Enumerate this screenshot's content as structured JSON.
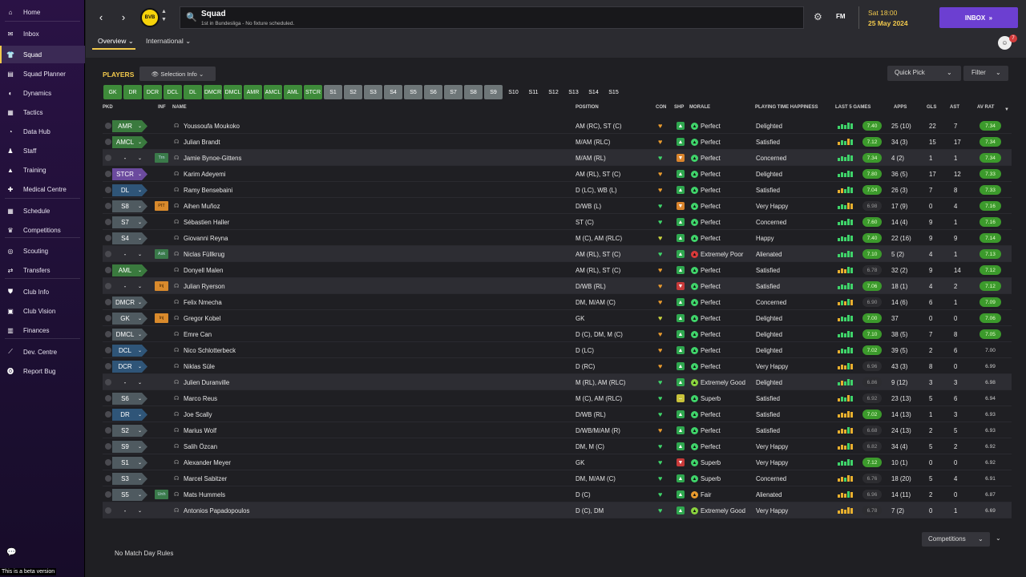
{
  "sidebar": {
    "items": [
      {
        "label": "Home",
        "icon": "home-icon",
        "glyph": "⌂",
        "top": 4,
        "active": false
      },
      {
        "label": "Inbox",
        "icon": "inbox-icon",
        "glyph": "✉",
        "top": 31,
        "active": false
      },
      {
        "label": "Squad",
        "icon": "shirt-icon",
        "glyph": "👕",
        "top": 57,
        "active": true
      },
      {
        "label": "Squad Planner",
        "icon": "planner-icon",
        "glyph": "▤",
        "top": 81,
        "active": false
      },
      {
        "label": "Dynamics",
        "icon": "dynamics-icon",
        "glyph": "◐",
        "top": 105,
        "active": false
      },
      {
        "label": "Tactics",
        "icon": "tactics-icon",
        "glyph": "▦",
        "top": 129,
        "active": false
      },
      {
        "label": "Data Hub",
        "icon": "datahub-icon",
        "glyph": "◔",
        "top": 153,
        "active": false
      },
      {
        "label": "Staff",
        "icon": "staff-icon",
        "glyph": "♟",
        "top": 177,
        "active": false
      },
      {
        "label": "Training",
        "icon": "training-icon",
        "glyph": "▲",
        "top": 201,
        "active": false
      },
      {
        "label": "Medical Centre",
        "icon": "medical-icon",
        "glyph": "✚",
        "top": 225,
        "active": false
      },
      {
        "label": "Schedule",
        "icon": "schedule-icon",
        "glyph": "▦",
        "top": 252,
        "active": false
      },
      {
        "label": "Competitions",
        "icon": "trophy-icon",
        "glyph": "♛",
        "top": 276,
        "active": false
      },
      {
        "label": "Scouting",
        "icon": "scouting-icon",
        "glyph": "◎",
        "top": 302,
        "active": false
      },
      {
        "label": "Transfers",
        "icon": "transfers-icon",
        "glyph": "⇄",
        "top": 326,
        "active": false
      },
      {
        "label": "Club Info",
        "icon": "clubinfo-icon",
        "glyph": "⛊",
        "top": 353,
        "active": false
      },
      {
        "label": "Club Vision",
        "icon": "clubvision-icon",
        "glyph": "▣",
        "top": 377,
        "active": false
      },
      {
        "label": "Finances",
        "icon": "finances-icon",
        "glyph": "▥",
        "top": 401,
        "active": false
      },
      {
        "label": "Dev. Centre",
        "icon": "devcentre-icon",
        "glyph": "⟋",
        "top": 428,
        "active": false
      },
      {
        "label": "Report Bug",
        "icon": "bug-icon",
        "glyph": "⓿",
        "top": 452,
        "active": false
      }
    ]
  },
  "beta_text": "This is a beta version",
  "header": {
    "title": "Squad",
    "subtitle": "1st in Bundesliga - No fixture scheduled.",
    "club_abbr": "BVB",
    "fm_logo": "FM",
    "date_time": "Sat 18:00",
    "date": "25 May 2024",
    "inbox_label": "INBOX",
    "notification_count": "7",
    "tabs": [
      {
        "label": "Overview ⌄",
        "active": true
      },
      {
        "label": "International ⌄",
        "active": false
      }
    ]
  },
  "toolbar": {
    "players_label": "PLAYERS",
    "selection_info": "Selection Info",
    "quick_pick": "Quick Pick",
    "filter": "Filter"
  },
  "position_filters": [
    {
      "label": "GK",
      "state": "green"
    },
    {
      "label": "DR",
      "state": "green"
    },
    {
      "label": "DCR",
      "state": "green"
    },
    {
      "label": "DCL",
      "state": "green"
    },
    {
      "label": "DL",
      "state": "green"
    },
    {
      "label": "DMCR",
      "state": "green"
    },
    {
      "label": "DMCL",
      "state": "green"
    },
    {
      "label": "AMR",
      "state": "green"
    },
    {
      "label": "AMCL",
      "state": "green"
    },
    {
      "label": "AML",
      "state": "green"
    },
    {
      "label": "STCR",
      "state": "green"
    },
    {
      "label": "S1",
      "state": "grey"
    },
    {
      "label": "S2",
      "state": "grey"
    },
    {
      "label": "S3",
      "state": "grey"
    },
    {
      "label": "S4",
      "state": "grey"
    },
    {
      "label": "S5",
      "state": "grey"
    },
    {
      "label": "S6",
      "state": "grey"
    },
    {
      "label": "S7",
      "state": "grey"
    },
    {
      "label": "S8",
      "state": "grey"
    },
    {
      "label": "S9",
      "state": "grey"
    },
    {
      "label": "S10",
      "state": "dark"
    },
    {
      "label": "S11",
      "state": "dark"
    },
    {
      "label": "S12",
      "state": "dark"
    },
    {
      "label": "S13",
      "state": "dark"
    },
    {
      "label": "S14",
      "state": "dark"
    },
    {
      "label": "S15",
      "state": "dark"
    }
  ],
  "columns": [
    "PKD",
    "INF",
    "NAME",
    "POSITION",
    "CON",
    "SHP",
    "MORALE",
    "PLAYING TIME HAPPINESS",
    "LAST 5 GAMES",
    "APPS",
    "GLS",
    "AST",
    "AV RAT"
  ],
  "players": [
    {
      "pkd": "AMR",
      "pkd_type": "green",
      "inf": "",
      "name": "Youssoufa Moukoko",
      "position": "AM (RC), ST (C)",
      "con": "orange",
      "shp": "green-up",
      "morale": "Perfect",
      "ptime": "Delighted",
      "bars": [
        "g",
        "g",
        "g",
        "g",
        "g"
      ],
      "last5": "7.40",
      "last5c": "green",
      "apps": "25 (10)",
      "gls": "22",
      "ast": "7",
      "avrat": "7.34",
      "avratc": "green",
      "alt": false
    },
    {
      "pkd": "AMCL",
      "pkd_type": "green",
      "inf": "",
      "name": "Julian Brandt",
      "position": "M/AM (RLC)",
      "con": "orange",
      "shp": "green-up",
      "morale": "Perfect",
      "ptime": "Satisfied",
      "bars": [
        "o",
        "g",
        "g",
        "o",
        "g"
      ],
      "last5": "7.12",
      "last5c": "green",
      "apps": "34 (3)",
      "gls": "15",
      "ast": "17",
      "avrat": "7.34",
      "avratc": "green",
      "alt": false
    },
    {
      "pkd": "-",
      "pkd_type": "none",
      "inf": "Trn",
      "infc": "green",
      "name": "Jamie Bynoe-Gittens",
      "position": "M/AM (RL)",
      "con": "green",
      "shp": "orange-down",
      "morale": "Perfect",
      "ptime": "Concerned",
      "bars": [
        "g",
        "g",
        "g",
        "g",
        "g"
      ],
      "last5": "7.34",
      "last5c": "green",
      "apps": "4 (2)",
      "gls": "1",
      "ast": "1",
      "avrat": "7.34",
      "avratc": "green",
      "alt": true
    },
    {
      "pkd": "STCR",
      "pkd_type": "purple",
      "inf": "",
      "name": "Karim Adeyemi",
      "position": "AM (RL), ST (C)",
      "con": "orange",
      "shp": "green-up",
      "morale": "Perfect",
      "ptime": "Delighted",
      "bars": [
        "g",
        "g",
        "g",
        "g",
        "g"
      ],
      "last5": "7.80",
      "last5c": "green",
      "apps": "36 (5)",
      "gls": "17",
      "ast": "12",
      "avrat": "7.33",
      "avratc": "green",
      "alt": false
    },
    {
      "pkd": "DL",
      "pkd_type": "blue",
      "inf": "",
      "name": "Ramy Bensebaini",
      "position": "D (LC), WB (L)",
      "con": "orange",
      "shp": "green-up",
      "morale": "Perfect",
      "ptime": "Satisfied",
      "bars": [
        "o",
        "o",
        "g",
        "g",
        "g"
      ],
      "last5": "7.04",
      "last5c": "green",
      "apps": "26 (3)",
      "gls": "7",
      "ast": "8",
      "avrat": "7.33",
      "avratc": "green",
      "alt": false
    },
    {
      "pkd": "S8",
      "pkd_type": "grey",
      "inf": "PIT",
      "infc": "orange",
      "name": "Aihen Muñoz",
      "position": "D/WB (L)",
      "con": "green",
      "shp": "orange-down",
      "morale": "Perfect",
      "ptime": "Very Happy",
      "bars": [
        "g",
        "g",
        "g",
        "o",
        "o"
      ],
      "last5": "6.98",
      "last5c": "dark",
      "apps": "17 (9)",
      "gls": "0",
      "ast": "4",
      "avrat": "7.16",
      "avratc": "green",
      "alt": false
    },
    {
      "pkd": "S7",
      "pkd_type": "grey",
      "inf": "",
      "name": "Sébastien Haller",
      "position": "ST (C)",
      "con": "green",
      "shp": "green-up",
      "morale": "Perfect",
      "ptime": "Concerned",
      "bars": [
        "g",
        "g",
        "g",
        "g",
        "g"
      ],
      "last5": "7.60",
      "last5c": "green",
      "apps": "14 (4)",
      "gls": "9",
      "ast": "1",
      "avrat": "7.16",
      "avratc": "green",
      "alt": false
    },
    {
      "pkd": "S4",
      "pkd_type": "grey",
      "inf": "",
      "name": "Giovanni Reyna",
      "position": "M (C), AM (RLC)",
      "con": "yellow",
      "shp": "green-up",
      "morale": "Perfect",
      "ptime": "Happy",
      "bars": [
        "g",
        "g",
        "g",
        "g",
        "g"
      ],
      "last5": "7.40",
      "last5c": "green",
      "apps": "22 (16)",
      "gls": "9",
      "ast": "9",
      "avrat": "7.14",
      "avratc": "green",
      "alt": false
    },
    {
      "pkd": "-",
      "pkd_type": "none",
      "inf": "Ask",
      "infc": "green",
      "name": "Niclas Füllkrug",
      "position": "AM (RL), ST (C)",
      "con": "green",
      "shp": "green-up",
      "morale": "Extremely Poor",
      "ptime": "Alienated",
      "bars": [
        "g",
        "g",
        "g",
        "g",
        "g"
      ],
      "last5": "7.10",
      "last5c": "green",
      "apps": "5 (2)",
      "gls": "4",
      "ast": "1",
      "avrat": "7.13",
      "avratc": "green",
      "alt": true
    },
    {
      "pkd": "AML",
      "pkd_type": "green",
      "inf": "",
      "name": "Donyell Malen",
      "position": "AM (RL), ST (C)",
      "con": "orange",
      "shp": "green-up",
      "morale": "Perfect",
      "ptime": "Satisfied",
      "bars": [
        "o",
        "o",
        "o",
        "g",
        "g"
      ],
      "last5": "6.78",
      "last5c": "dark",
      "apps": "32 (2)",
      "gls": "9",
      "ast": "14",
      "avrat": "7.12",
      "avratc": "green",
      "alt": false
    },
    {
      "pkd": "-",
      "pkd_type": "none",
      "inf": "Inj",
      "infc": "orange",
      "name": "Julian Ryerson",
      "position": "D/WB (RL)",
      "con": "orange",
      "shp": "red-down",
      "morale": "Perfect",
      "ptime": "Satisfied",
      "bars": [
        "g",
        "g",
        "g",
        "g",
        "g"
      ],
      "last5": "7.06",
      "last5c": "green",
      "apps": "18 (1)",
      "gls": "4",
      "ast": "2",
      "avrat": "7.12",
      "avratc": "green",
      "alt": true
    },
    {
      "pkd": "DMCR",
      "pkd_type": "grey",
      "inf": "",
      "name": "Felix Nmecha",
      "position": "DM, M/AM (C)",
      "con": "orange",
      "shp": "green-up",
      "morale": "Perfect",
      "ptime": "Concerned",
      "bars": [
        "o",
        "g",
        "o",
        "g",
        "o"
      ],
      "last5": "6.90",
      "last5c": "dark",
      "apps": "14 (6)",
      "gls": "6",
      "ast": "1",
      "avrat": "7.09",
      "avratc": "green",
      "alt": false
    },
    {
      "pkd": "GK",
      "pkd_type": "grey",
      "inf": "Inj",
      "infc": "orange",
      "name": "Gregor Kobel",
      "position": "GK",
      "con": "yellow",
      "shp": "green-up",
      "morale": "Perfect",
      "ptime": "Delighted",
      "bars": [
        "o",
        "g",
        "g",
        "g",
        "g"
      ],
      "last5": "7.00",
      "last5c": "green",
      "apps": "37",
      "gls": "0",
      "ast": "0",
      "avrat": "7.06",
      "avratc": "green",
      "alt": false
    },
    {
      "pkd": "DMCL",
      "pkd_type": "grey",
      "inf": "",
      "name": "Emre Can",
      "position": "D (C), DM, M (C)",
      "con": "orange",
      "shp": "green-up",
      "morale": "Perfect",
      "ptime": "Delighted",
      "bars": [
        "g",
        "g",
        "g",
        "g",
        "g"
      ],
      "last5": "7.10",
      "last5c": "green",
      "apps": "38 (5)",
      "gls": "7",
      "ast": "8",
      "avrat": "7.05",
      "avratc": "green",
      "alt": false
    },
    {
      "pkd": "DCL",
      "pkd_type": "blue",
      "inf": "",
      "name": "Nico Schlotterbeck",
      "position": "D (LC)",
      "con": "orange",
      "shp": "green-up",
      "morale": "Perfect",
      "ptime": "Delighted",
      "bars": [
        "o",
        "g",
        "g",
        "g",
        "g"
      ],
      "last5": "7.02",
      "last5c": "green",
      "apps": "39 (5)",
      "gls": "2",
      "ast": "6",
      "avrat": "7.00",
      "avratc": "dark",
      "alt": false
    },
    {
      "pkd": "DCR",
      "pkd_type": "blue",
      "inf": "",
      "name": "Niklas Süle",
      "position": "D (RC)",
      "con": "orange",
      "shp": "green-up",
      "morale": "Perfect",
      "ptime": "Very Happy",
      "bars": [
        "o",
        "o",
        "o",
        "g",
        "o"
      ],
      "last5": "6.96",
      "last5c": "dark",
      "apps": "43 (3)",
      "gls": "8",
      "ast": "0",
      "avrat": "6.99",
      "avratc": "dark",
      "alt": false
    },
    {
      "pkd": "-",
      "pkd_type": "none",
      "inf": "",
      "name": "Julien Duranville",
      "position": "M (RL), AM (RLC)",
      "con": "green",
      "shp": "green-up",
      "morale": "Extremely Good",
      "ptime": "Delighted",
      "bars": [
        "g",
        "o",
        "g",
        "g",
        "g"
      ],
      "last5": "6.86",
      "last5c": "dark",
      "apps": "9 (12)",
      "gls": "3",
      "ast": "3",
      "avrat": "6.98",
      "avratc": "dark",
      "alt": true
    },
    {
      "pkd": "S6",
      "pkd_type": "grey",
      "inf": "",
      "name": "Marco Reus",
      "position": "M (C), AM (RLC)",
      "con": "green",
      "shp": "yellow-mid",
      "morale": "Superb",
      "ptime": "Satisfied",
      "bars": [
        "o",
        "g",
        "g",
        "o",
        "g"
      ],
      "last5": "6.92",
      "last5c": "dark",
      "apps": "23 (13)",
      "gls": "5",
      "ast": "6",
      "avrat": "6.94",
      "avratc": "dark",
      "alt": false
    },
    {
      "pkd": "DR",
      "pkd_type": "blue",
      "inf": "",
      "name": "Joe Scally",
      "position": "D/WB (RL)",
      "con": "green",
      "shp": "green-up",
      "morale": "Perfect",
      "ptime": "Satisfied",
      "bars": [
        "o",
        "o",
        "o",
        "o",
        "o"
      ],
      "last5": "7.02",
      "last5c": "green",
      "apps": "14 (13)",
      "gls": "1",
      "ast": "3",
      "avrat": "6.93",
      "avratc": "dark",
      "alt": false
    },
    {
      "pkd": "S2",
      "pkd_type": "grey",
      "inf": "",
      "name": "Marius Wolf",
      "position": "D/WB/M/AM (R)",
      "con": "orange",
      "shp": "green-up",
      "morale": "Perfect",
      "ptime": "Satisfied",
      "bars": [
        "o",
        "o",
        "o",
        "g",
        "o"
      ],
      "last5": "6.68",
      "last5c": "dark",
      "apps": "24 (13)",
      "gls": "2",
      "ast": "5",
      "avrat": "6.93",
      "avratc": "dark",
      "alt": false
    },
    {
      "pkd": "S9",
      "pkd_type": "grey",
      "inf": "",
      "name": "Salih Özcan",
      "position": "DM, M (C)",
      "con": "green",
      "shp": "green-up",
      "morale": "Perfect",
      "ptime": "Very Happy",
      "bars": [
        "o",
        "o",
        "o",
        "g",
        "o"
      ],
      "last5": "6.82",
      "last5c": "dark",
      "apps": "34 (4)",
      "gls": "5",
      "ast": "2",
      "avrat": "6.92",
      "avratc": "dark",
      "alt": false
    },
    {
      "pkd": "S1",
      "pkd_type": "grey",
      "inf": "",
      "name": "Alexander Meyer",
      "position": "GK",
      "con": "green",
      "shp": "red-down",
      "morale": "Superb",
      "ptime": "Very Happy",
      "bars": [
        "g",
        "g",
        "g",
        "g",
        "g"
      ],
      "last5": "7.12",
      "last5c": "green",
      "apps": "10 (1)",
      "gls": "0",
      "ast": "0",
      "avrat": "6.92",
      "avratc": "dark",
      "alt": false
    },
    {
      "pkd": "S3",
      "pkd_type": "grey",
      "inf": "",
      "name": "Marcel Sabitzer",
      "position": "DM, M/AM (C)",
      "con": "green",
      "shp": "green-up",
      "morale": "Superb",
      "ptime": "Concerned",
      "bars": [
        "o",
        "o",
        "g",
        "o",
        "o"
      ],
      "last5": "6.76",
      "last5c": "dark",
      "apps": "18 (20)",
      "gls": "5",
      "ast": "4",
      "avrat": "6.91",
      "avratc": "dark",
      "alt": false
    },
    {
      "pkd": "S5",
      "pkd_type": "grey",
      "inf": "Unh",
      "infc": "green",
      "name": "Mats Hummels",
      "position": "D (C)",
      "con": "green",
      "shp": "green-up",
      "morale": "Fair",
      "ptime": "Alienated",
      "bars": [
        "o",
        "o",
        "o",
        "g",
        "o"
      ],
      "last5": "6.96",
      "last5c": "dark",
      "apps": "14 (11)",
      "gls": "2",
      "ast": "0",
      "avrat": "6.87",
      "avratc": "dark",
      "alt": false
    },
    {
      "pkd": "-",
      "pkd_type": "none",
      "inf": "",
      "name": "Antonios Papadopoulos",
      "position": "D (C), DM",
      "con": "green",
      "shp": "green-up",
      "morale": "Extremely Good",
      "ptime": "Very Happy",
      "bars": [
        "o",
        "o",
        "o",
        "o",
        "o"
      ],
      "last5": "6.78",
      "last5c": "dark",
      "apps": "7 (2)",
      "gls": "0",
      "ast": "1",
      "avrat": "6.69",
      "avratc": "dark",
      "alt": true
    }
  ],
  "footer": {
    "competitions": "Competitions",
    "no_rules": "No Match Day Rules"
  }
}
